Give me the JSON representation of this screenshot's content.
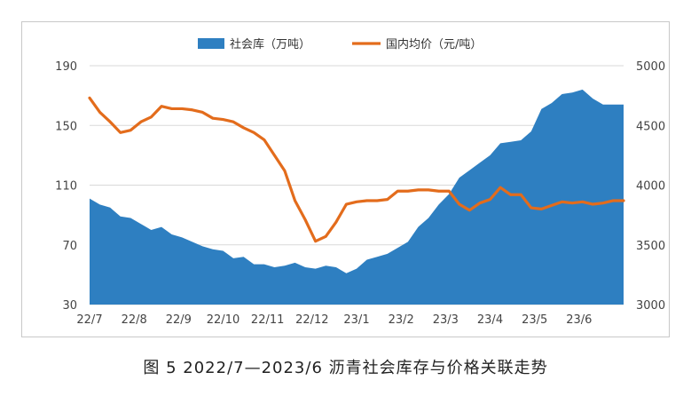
{
  "caption": "图 5  2022/7—2023/6 沥青社会库存与价格关联走势",
  "chart_data": {
    "type": "area",
    "x_tick_labels": [
      "22/7",
      "22/8",
      "22/9",
      "22/10",
      "22/11",
      "22/12",
      "23/1",
      "23/2",
      "23/3",
      "23/4",
      "23/5",
      "23/6"
    ],
    "y_left": {
      "ticks": [
        30,
        70,
        110,
        150,
        190
      ],
      "range": [
        30,
        190
      ]
    },
    "y_right": {
      "ticks": [
        3000,
        3500,
        4000,
        4500,
        5000
      ],
      "range": [
        3000,
        5000
      ]
    },
    "legend_position": "top",
    "series": [
      {
        "name": "社会库（万吨）",
        "type": "area",
        "axis": "left",
        "color": "#2e7fc1",
        "values": [
          101,
          97,
          95,
          89,
          88,
          84,
          80,
          82,
          77,
          75,
          72,
          69,
          67,
          66,
          61,
          62,
          57,
          57,
          55,
          56,
          58,
          55,
          54,
          56,
          55,
          51,
          54,
          60,
          62,
          64,
          68,
          72,
          82,
          88,
          97,
          104,
          115,
          120,
          125,
          130,
          138,
          139,
          140,
          146,
          161,
          165,
          171,
          172,
          174,
          168,
          164,
          164,
          164
        ]
      },
      {
        "name": "国内均价（元/吨）",
        "type": "line",
        "axis": "right",
        "color": "#e36c1c",
        "values": [
          4730,
          4610,
          4530,
          4440,
          4460,
          4530,
          4570,
          4660,
          4640,
          4640,
          4630,
          4610,
          4560,
          4550,
          4530,
          4480,
          4440,
          4380,
          4250,
          4120,
          3870,
          3710,
          3530,
          3570,
          3690,
          3840,
          3860,
          3870,
          3870,
          3880,
          3950,
          3950,
          3960,
          3960,
          3950,
          3950,
          3840,
          3790,
          3850,
          3880,
          3980,
          3920,
          3920,
          3810,
          3800,
          3830,
          3860,
          3850,
          3860,
          3840,
          3850,
          3870,
          3870
        ]
      }
    ]
  }
}
